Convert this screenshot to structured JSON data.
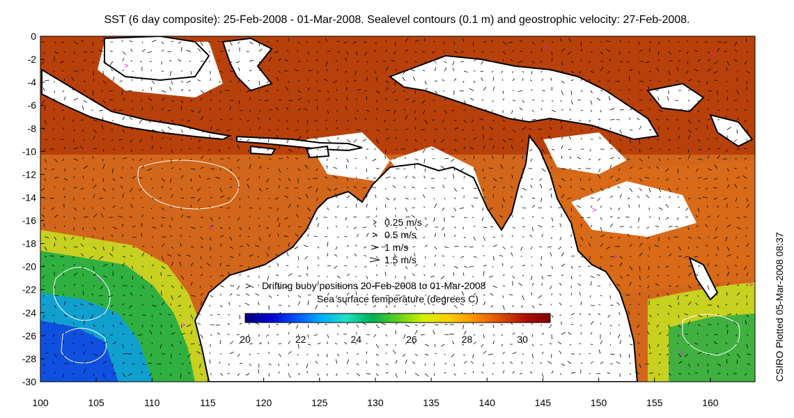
{
  "title": "SST (6 day composite): 25-Feb-2008 - 01-Mar-2008. Sealevel contours (0.1 m) and geostrophic velocity: 27-Feb-2008.",
  "side_credit": "CSIRO Plotted 05-Mar-2008 08:37",
  "axes": {
    "x_ticks": [
      "100",
      "105",
      "110",
      "115",
      "120",
      "125",
      "130",
      "135",
      "140",
      "145",
      "150",
      "155",
      "160"
    ],
    "y_ticks": [
      "0",
      "-2",
      "-4",
      "-6",
      "-8",
      "-10",
      "-12",
      "-14",
      "-16",
      "-18",
      "-20",
      "-22",
      "-24",
      "-26",
      "-28",
      "-30"
    ],
    "xlim": [
      100,
      164
    ],
    "ylim": [
      -30,
      0
    ]
  },
  "velocity_legend": [
    {
      "label": "0.25 m/s"
    },
    {
      "label": "0.5 m/s"
    },
    {
      "label": "1 m/s"
    },
    {
      "label": "1.5 m/s"
    }
  ],
  "buoy_legend": {
    "symbol": ">",
    "label": "Drifting buoy positions 20-Feb-2008 to 01-Mar-2008",
    "color": "#e020e0"
  },
  "colorbar": {
    "label": "Sea surface temperature (degrees C)",
    "ticks": [
      "20",
      "22",
      "24",
      "26",
      "28",
      "30"
    ],
    "range": [
      20,
      31
    ],
    "colors": [
      "#00007f",
      "#0000d0",
      "#0050ff",
      "#00b0ff",
      "#20e0c0",
      "#00b050",
      "#60d020",
      "#d0f000",
      "#ffd000",
      "#ff9000",
      "#e05000",
      "#b01000",
      "#800000"
    ]
  },
  "colors": {
    "land": "#ffffff",
    "coast": "#000000",
    "contours": "#ffffff",
    "vectors": "#000000"
  }
}
